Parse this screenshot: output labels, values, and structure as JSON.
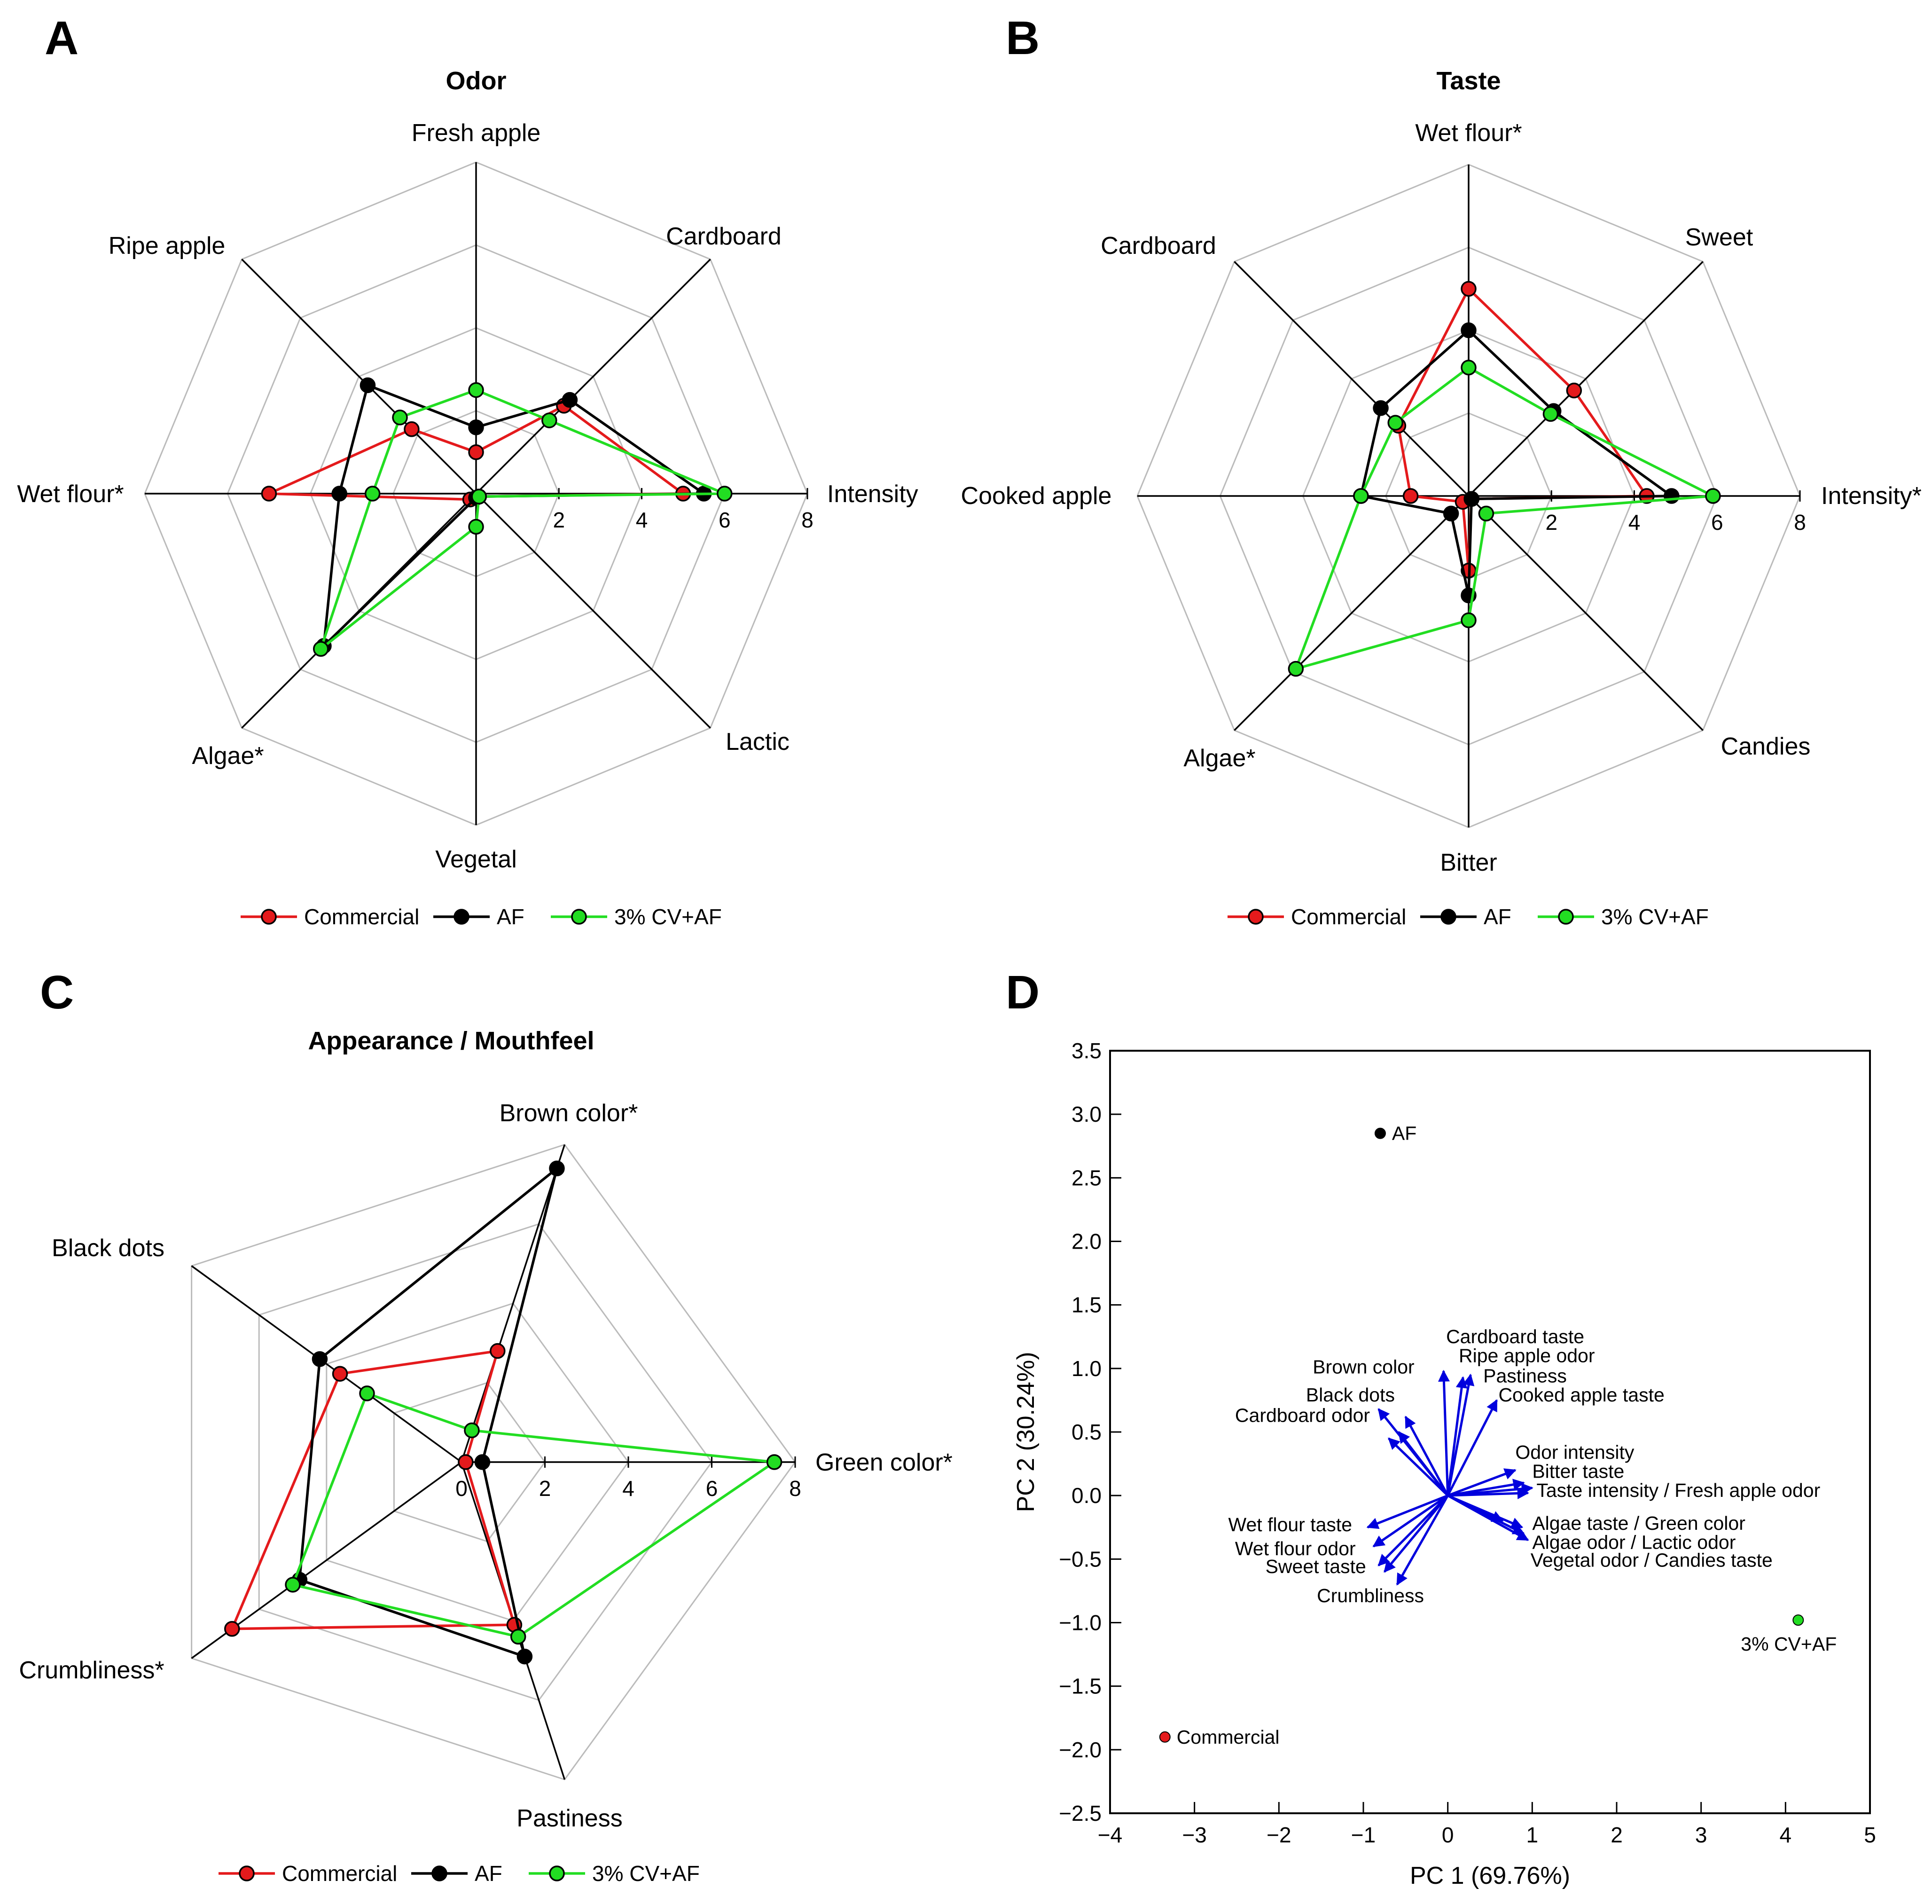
{
  "panels": {
    "A": {
      "letter": "A"
    },
    "B": {
      "letter": "B"
    },
    "C": {
      "letter": "C"
    },
    "D": {
      "letter": "D"
    }
  },
  "colors": {
    "Commercial": "#e41a1c",
    "AF": "#000000",
    "3% CV+AF": "#22dd22",
    "grid": "#bbbbbb",
    "arrow": "#0000dd"
  },
  "chart_data": [
    {
      "type": "radar",
      "title": "Odor",
      "axes": [
        "Intensity",
        "Cardboard",
        "Fresh apple",
        "Ripe apple",
        "Wet flour*",
        "Algae*",
        "Vegetal",
        "Lactic"
      ],
      "range": [
        0,
        8
      ],
      "ticks": [
        "2",
        "4",
        "6",
        "8"
      ],
      "legend_position": "bottom",
      "series": [
        {
          "name": "Commercial",
          "values": [
            5.0,
            3.0,
            1.0,
            2.2,
            5.0,
            0.2,
            0.1,
            0.1
          ]
        },
        {
          "name": "AF",
          "values": [
            5.5,
            3.2,
            1.6,
            3.7,
            3.3,
            5.2,
            0.1,
            0.1
          ]
        },
        {
          "name": "3% CV+AF",
          "values": [
            6.0,
            2.5,
            2.5,
            2.6,
            2.5,
            5.3,
            0.8,
            0.1
          ]
        }
      ]
    },
    {
      "type": "radar",
      "title": "Taste",
      "axes": [
        "Intensity*",
        "Sweet",
        "Wet flour*",
        "Cardboard",
        "Cooked apple",
        "Algae*",
        "Bitter",
        "Candies"
      ],
      "range": [
        0,
        8
      ],
      "ticks": [
        "2",
        "4",
        "6",
        "8"
      ],
      "legend_position": "bottom",
      "series": [
        {
          "name": "Commercial",
          "values": [
            4.3,
            3.6,
            5.0,
            2.4,
            1.4,
            0.2,
            1.8,
            0.1
          ]
        },
        {
          "name": "AF",
          "values": [
            4.9,
            2.9,
            4.0,
            3.0,
            2.6,
            0.6,
            2.4,
            0.1
          ]
        },
        {
          "name": "3% CV+AF",
          "values": [
            5.9,
            2.8,
            3.1,
            2.5,
            2.6,
            5.9,
            3.0,
            0.6
          ]
        }
      ]
    },
    {
      "type": "radar",
      "title": "Appearance / Mouthfeel",
      "axes": [
        "Green color*",
        "Brown color*",
        "Black dots",
        "Crumbliness*",
        "Pastiness"
      ],
      "range": [
        0,
        8
      ],
      "ticks": [
        "0",
        "2",
        "4",
        "6",
        "8"
      ],
      "legend_position": "bottom",
      "series": [
        {
          "name": "Commercial",
          "values": [
            0.1,
            2.8,
            3.6,
            6.8,
            4.1
          ]
        },
        {
          "name": "AF",
          "values": [
            0.5,
            7.4,
            4.2,
            4.8,
            4.9
          ]
        },
        {
          "name": "3% CV+AF",
          "values": [
            7.5,
            0.8,
            2.8,
            5.0,
            4.4
          ]
        }
      ]
    },
    {
      "type": "biplot",
      "xlabel": "PC 1 (69.76%)",
      "ylabel": "PC 2 (30.24%)",
      "xlim": [
        -4,
        5
      ],
      "ylim": [
        -2.5,
        3.5
      ],
      "xticks": [
        "−4",
        "−3",
        "−2",
        "−1",
        "0",
        "1",
        "2",
        "3",
        "4",
        "5"
      ],
      "yticks": [
        "−2.5",
        "−2.0",
        "−1.5",
        "−1.0",
        "−0.5",
        "0.0",
        "0.5",
        "1.0",
        "1.5",
        "2.0",
        "2.5",
        "3.0",
        "3.5"
      ],
      "points": [
        {
          "name": "AF",
          "x": -0.8,
          "y": 2.85
        },
        {
          "name": "3% CV+AF",
          "x": 4.15,
          "y": -0.98
        },
        {
          "name": "Commercial",
          "x": -3.35,
          "y": -1.9
        }
      ],
      "arrow_tips": [
        [
          -0.05,
          0.98
        ],
        [
          0.27,
          0.95
        ],
        [
          0.18,
          0.93
        ],
        [
          0.58,
          0.75
        ],
        [
          -0.5,
          0.62
        ],
        [
          -0.58,
          0.5
        ],
        [
          -0.82,
          0.68
        ],
        [
          -0.7,
          0.45
        ],
        [
          0.8,
          0.2
        ],
        [
          0.9,
          0.1
        ],
        [
          0.95,
          0.02
        ],
        [
          1.0,
          0.06
        ],
        [
          0.65,
          -0.2
        ],
        [
          0.95,
          -0.35
        ],
        [
          0.9,
          -0.3
        ],
        [
          0.88,
          -0.25
        ],
        [
          -0.95,
          -0.25
        ],
        [
          -0.88,
          -0.4
        ],
        [
          -0.82,
          -0.55
        ],
        [
          -0.6,
          -0.7
        ],
        [
          -0.75,
          -0.6
        ]
      ],
      "arrow_labels": [
        {
          "text": "Cardboard taste",
          "x": -0.02,
          "y": 1.2
        },
        {
          "text": "Ripe apple odor",
          "x": 0.13,
          "y": 1.05
        },
        {
          "text": "Brown color",
          "x": -1.6,
          "y": 0.96
        },
        {
          "text": "Pastiness",
          "x": 0.42,
          "y": 0.89
        },
        {
          "text": "Black dots",
          "x": -1.68,
          "y": 0.74
        },
        {
          "text": "Cooked apple taste",
          "x": 0.6,
          "y": 0.74
        },
        {
          "text": "Cardboard odor",
          "x": -2.52,
          "y": 0.58
        },
        {
          "text": "Odor intensity",
          "x": 0.8,
          "y": 0.29
        },
        {
          "text": "Bitter taste",
          "x": 1.0,
          "y": 0.14
        },
        {
          "text": "Taste intensity / Fresh apple odor",
          "x": 1.05,
          "y": -0.01
        },
        {
          "text": "Wet flour taste",
          "x": -2.6,
          "y": -0.28
        },
        {
          "text": "Algae taste / Green color",
          "x": 1.0,
          "y": -0.27
        },
        {
          "text": "Wet flour odor",
          "x": -2.52,
          "y": -0.47
        },
        {
          "text": "Algae odor / Lactic odor",
          "x": 1.0,
          "y": -0.42
        },
        {
          "text": "Sweet taste",
          "x": -2.16,
          "y": -0.61
        },
        {
          "text": "Vegetal odor / Candies taste",
          "x": 0.98,
          "y": -0.56
        },
        {
          "text": "Crumbliness",
          "x": -1.55,
          "y": -0.84
        }
      ]
    }
  ]
}
